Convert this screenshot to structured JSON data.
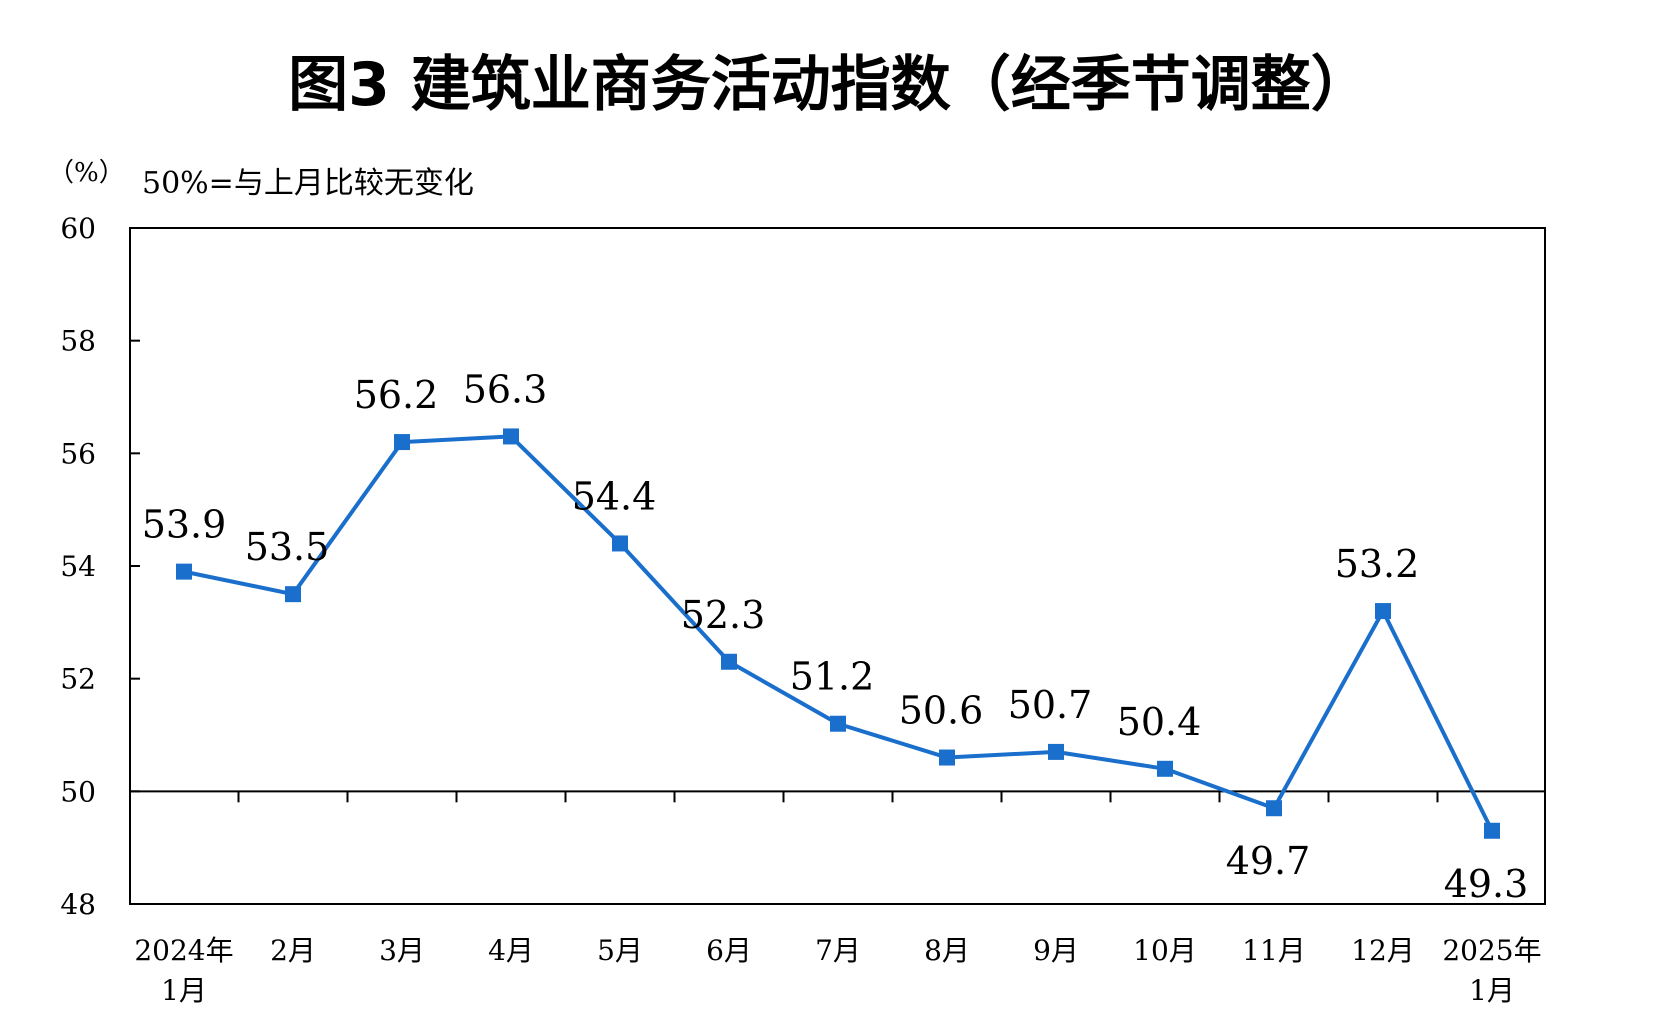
{
  "chart_data": {
    "type": "line",
    "title": "图3  建筑业商务活动指数（经季节调整）",
    "unit": "（%）",
    "note": "50%=与上月比较无变化",
    "categories": [
      [
        "2024年",
        "1月"
      ],
      [
        "2月"
      ],
      [
        "3月"
      ],
      [
        "4月"
      ],
      [
        "5月"
      ],
      [
        "6月"
      ],
      [
        "7月"
      ],
      [
        "8月"
      ],
      [
        "9月"
      ],
      [
        "10月"
      ],
      [
        "11月"
      ],
      [
        "12月"
      ],
      [
        "2025年",
        "1月"
      ]
    ],
    "values": [
      53.9,
      53.5,
      56.2,
      56.3,
      54.4,
      52.3,
      51.2,
      50.6,
      50.7,
      50.4,
      49.7,
      53.2,
      49.3
    ],
    "ylim": [
      48,
      60
    ],
    "yticks": [
      48,
      50,
      52,
      54,
      56,
      58,
      60
    ],
    "reference_line": 50,
    "label_position": [
      "above",
      "above",
      "above",
      "above",
      "above",
      "above",
      "above",
      "above",
      "above",
      "above",
      "below",
      "above",
      "below"
    ],
    "colors": {
      "series": "#1a6fcc",
      "axis": "#000000"
    },
    "grid": false,
    "legend": "none"
  }
}
